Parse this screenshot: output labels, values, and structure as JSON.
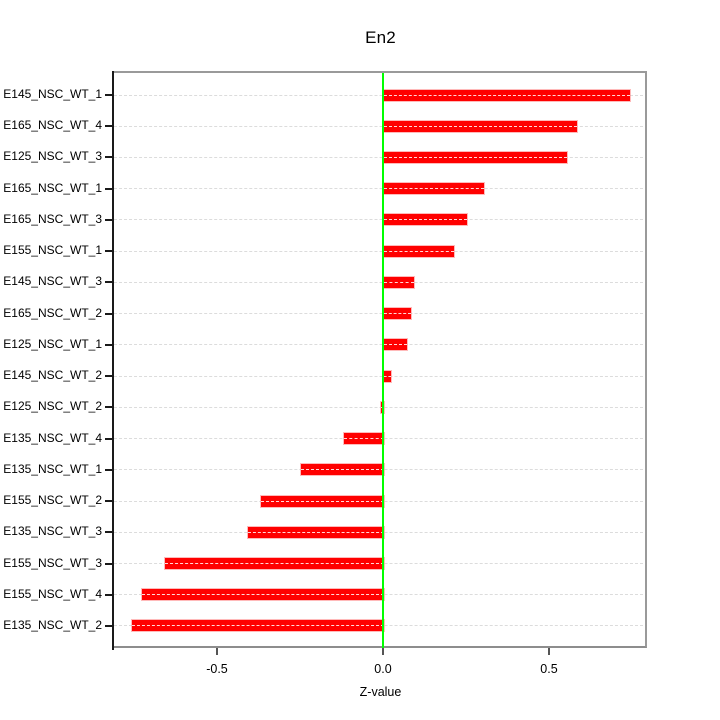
{
  "chart_data": {
    "type": "bar",
    "orientation": "horizontal",
    "title": "En2",
    "xlabel": "Z-value",
    "ylabel": "",
    "categories": [
      "E145_NSC_WT_1",
      "E165_NSC_WT_4",
      "E125_NSC_WT_3",
      "E165_NSC_WT_1",
      "E165_NSC_WT_3",
      "E155_NSC_WT_1",
      "E145_NSC_WT_3",
      "E165_NSC_WT_2",
      "E125_NSC_WT_1",
      "E145_NSC_WT_2",
      "E125_NSC_WT_2",
      "E135_NSC_WT_4",
      "E135_NSC_WT_1",
      "E155_NSC_WT_2",
      "E135_NSC_WT_3",
      "E155_NSC_WT_3",
      "E155_NSC_WT_4",
      "E135_NSC_WT_2"
    ],
    "values": [
      0.74,
      0.58,
      0.55,
      0.3,
      0.25,
      0.21,
      0.09,
      0.08,
      0.07,
      0.02,
      -0.01,
      -0.12,
      -0.25,
      -0.37,
      -0.41,
      -0.66,
      -0.73,
      -0.76
    ],
    "xticks": [
      {
        "value": -0.5,
        "label": "-0.5"
      },
      {
        "value": 0.0,
        "label": "0.0"
      },
      {
        "value": 0.5,
        "label": "0.5"
      }
    ],
    "xlim": [
      -0.81,
      0.8
    ],
    "grid": "horizontal-dashed",
    "legend": "none",
    "colors": {
      "bar": "#ff0000",
      "zero_line": "#00ff00",
      "gridline": "#dcdcdc",
      "box_border": "#9a9a9a",
      "y_axis": "#1a1a1a",
      "text": "#000000"
    }
  }
}
